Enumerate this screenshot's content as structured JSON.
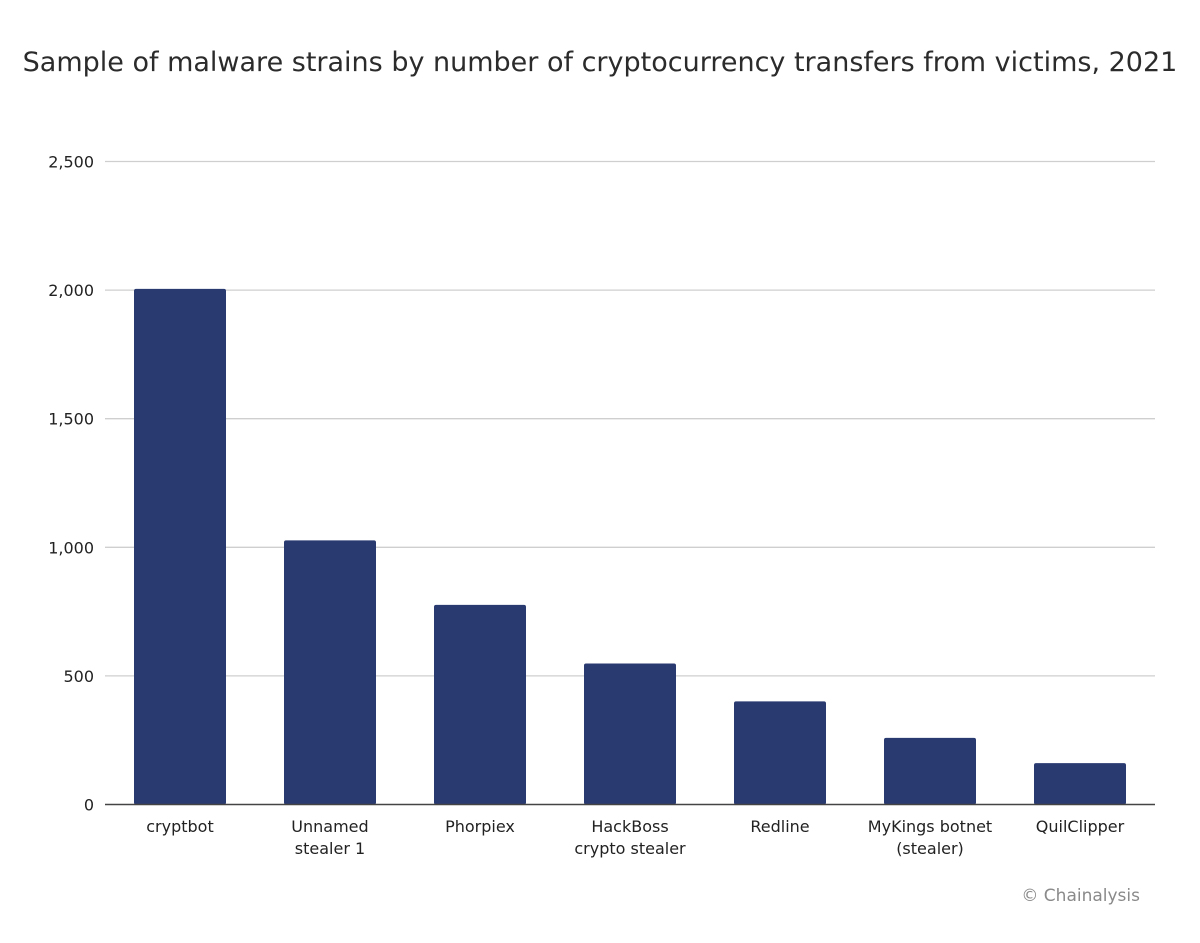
{
  "chart_data": {
    "type": "bar",
    "title": "Sample of malware strains by number of cryptocurrency transfers from victims, 2021",
    "categories": [
      "cryptbot",
      "Unnamed stealer 1",
      "Phorpiex",
      "HackBoss crypto stealer",
      "Redline",
      "MyKings botnet (stealer)",
      "QuilClipper"
    ],
    "category_lines": [
      [
        "cryptbot"
      ],
      [
        "Unnamed",
        "stealer 1"
      ],
      [
        "Phorpiex"
      ],
      [
        "HackBoss",
        "crypto stealer"
      ],
      [
        "Redline"
      ],
      [
        "MyKings botnet",
        "(stealer)"
      ],
      [
        "QuilClipper"
      ]
    ],
    "values": [
      2005,
      1027,
      776,
      548,
      401,
      259,
      161
    ],
    "xlabel": "",
    "ylabel": "",
    "ylim": [
      0,
      2500
    ],
    "yticks": [
      0,
      500,
      1000,
      1500,
      2000,
      2500
    ],
    "ytick_labels": [
      "0",
      "500",
      "1,000",
      "1,500",
      "2,000",
      "2,500"
    ],
    "grid": true,
    "legend": "none",
    "bar_color": "#293a70"
  },
  "credit": "© Chainalysis"
}
